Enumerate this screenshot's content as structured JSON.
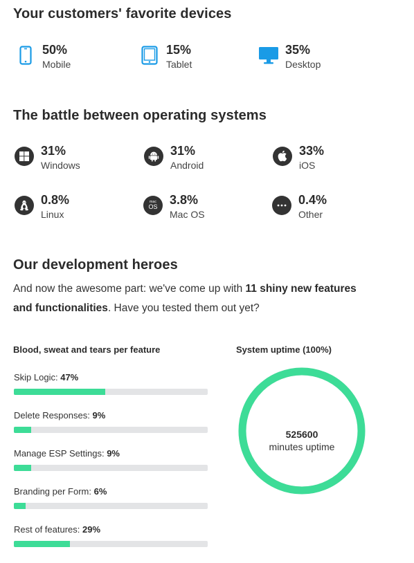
{
  "devices": {
    "title": "Your customers' favorite devices",
    "items": [
      {
        "value": "50%",
        "label": "Mobile",
        "icon": "mobile-icon"
      },
      {
        "value": "15%",
        "label": "Tablet",
        "icon": "tablet-icon"
      },
      {
        "value": "35%",
        "label": "Desktop",
        "icon": "desktop-icon"
      }
    ],
    "accent": "#1a9be6"
  },
  "os": {
    "title": "The battle between operating systems",
    "items": [
      {
        "value": "31%",
        "label": "Windows",
        "icon": "windows-icon"
      },
      {
        "value": "31%",
        "label": "Android",
        "icon": "android-icon"
      },
      {
        "value": "33%",
        "label": "iOS",
        "icon": "apple-icon"
      },
      {
        "value": "0.8%",
        "label": "Linux",
        "icon": "linux-icon"
      },
      {
        "value": "3.8%",
        "label": "Mac OS",
        "icon": "macos-icon"
      },
      {
        "value": "0.4%",
        "label": "Other",
        "icon": "more-icon"
      }
    ],
    "macos_badge_small": "mac",
    "macos_badge_big": "OS"
  },
  "heroes": {
    "title": "Our development heroes",
    "intro_before": "And now the awesome part: we've come up with ",
    "intro_bold": "11 shiny new features and functionalities",
    "intro_after": ". Have you tested them out yet?"
  },
  "features": {
    "title": "Blood, sweat and tears per feature",
    "bar_color": "#3ddc97",
    "track_color": "#e3e4e6",
    "items": [
      {
        "name": "Skip Logic:",
        "percent_label": "47%",
        "percent": 47
      },
      {
        "name": "Delete Responses:",
        "percent_label": "9%",
        "percent": 9
      },
      {
        "name": "Manage ESP Settings:",
        "percent_label": "9%",
        "percent": 9
      },
      {
        "name": "Branding per Form:",
        "percent_label": "6%",
        "percent": 6
      },
      {
        "name": "Rest of features:",
        "percent_label": "29%",
        "percent": 29
      }
    ]
  },
  "uptime": {
    "title": "System uptime (100%)",
    "percent": 100,
    "value": "525600",
    "label": "minutes uptime",
    "ring_color": "#3ddc97"
  }
}
